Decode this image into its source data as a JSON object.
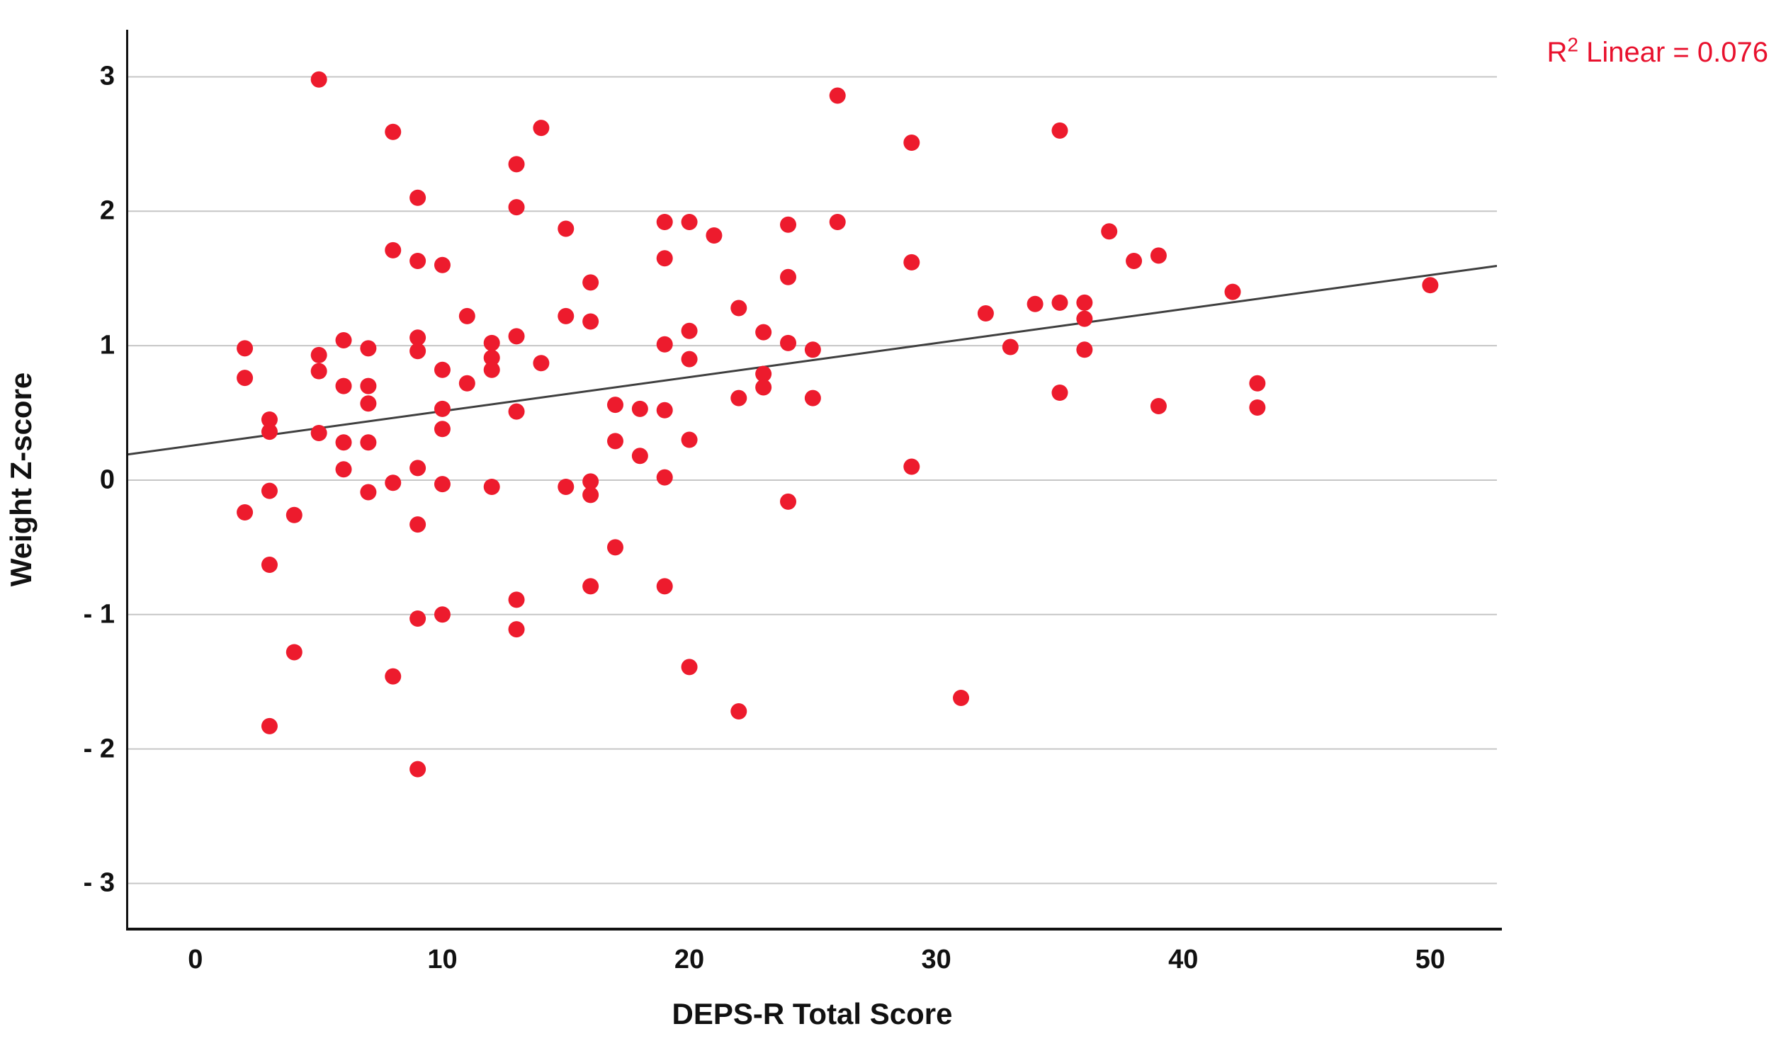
{
  "figure": {
    "background": "#ffffff",
    "annotation": {
      "r_symbol": "R",
      "exponent": "2",
      "text": " Linear = 0.076",
      "color": "#e8112d"
    }
  },
  "chart_data": {
    "type": "scatter",
    "title": "",
    "xlabel": "DEPS-R Total Score",
    "ylabel": "Weight Z-score",
    "xlim": [
      -2.75,
      52.7
    ],
    "ylim": [
      -3.34,
      3.35
    ],
    "xticks": [
      0,
      10,
      20,
      30,
      40,
      50
    ],
    "yticks": [
      {
        "value": 3,
        "label": "3"
      },
      {
        "value": 2,
        "label": "2"
      },
      {
        "value": 1,
        "label": "1"
      },
      {
        "value": 0,
        "label": "0"
      },
      {
        "value": -1,
        "label": "- 1"
      },
      {
        "value": -2,
        "label": "- 2"
      },
      {
        "value": -3,
        "label": "- 3"
      }
    ],
    "grid": "horizontal",
    "gridline_color": "#c6c6c6",
    "axis_color": "#111111",
    "marker_color": "#ed1b2d",
    "marker_diameter_px": 23,
    "trendline": {
      "slope": 0.0253,
      "intercept": 0.26,
      "color": "#3f3f3f",
      "r2": 0.076,
      "r2_label": "R² Linear = 0.076"
    },
    "legend": null,
    "points": [
      [
        5,
        2.98
      ],
      [
        8,
        2.59
      ],
      [
        9,
        2.1
      ],
      [
        10,
        1.6
      ],
      [
        8,
        1.71
      ],
      [
        9,
        1.63
      ],
      [
        13,
        2.35
      ],
      [
        13,
        2.03
      ],
      [
        14,
        2.62
      ],
      [
        15,
        1.87
      ],
      [
        16,
        1.47
      ],
      [
        15,
        1.22
      ],
      [
        16,
        1.18
      ],
      [
        11,
        1.22
      ],
      [
        19,
        1.92
      ],
      [
        20,
        1.92
      ],
      [
        21,
        1.82
      ],
      [
        19,
        1.65
      ],
      [
        22,
        1.28
      ],
      [
        24,
        1.9
      ],
      [
        24,
        1.51
      ],
      [
        26,
        2.86
      ],
      [
        29,
        2.51
      ],
      [
        35,
        2.6
      ],
      [
        26,
        1.92
      ],
      [
        29,
        1.62
      ],
      [
        32,
        1.24
      ],
      [
        34,
        1.31
      ],
      [
        35,
        1.32
      ],
      [
        36,
        1.32
      ],
      [
        36,
        1.2
      ],
      [
        37,
        1.85
      ],
      [
        38,
        1.63
      ],
      [
        39,
        1.67
      ],
      [
        42,
        1.4
      ],
      [
        50,
        1.45
      ],
      [
        2,
        0.98
      ],
      [
        2,
        0.76
      ],
      [
        5,
        0.93
      ],
      [
        5,
        0.81
      ],
      [
        6,
        1.04
      ],
      [
        7,
        0.98
      ],
      [
        6,
        0.7
      ],
      [
        7,
        0.7
      ],
      [
        7,
        0.57
      ],
      [
        9,
        1.06
      ],
      [
        9,
        0.96
      ],
      [
        10,
        0.82
      ],
      [
        11,
        0.72
      ],
      [
        12,
        1.02
      ],
      [
        12,
        0.91
      ],
      [
        12,
        0.82
      ],
      [
        13,
        1.07
      ],
      [
        13,
        0.51
      ],
      [
        14,
        0.87
      ],
      [
        17,
        0.56
      ],
      [
        18,
        0.53
      ],
      [
        19,
        0.52
      ],
      [
        19,
        1.01
      ],
      [
        20,
        1.11
      ],
      [
        20,
        0.9
      ],
      [
        22,
        0.61
      ],
      [
        23,
        1.1
      ],
      [
        23,
        0.79
      ],
      [
        23,
        0.69
      ],
      [
        24,
        1.02
      ],
      [
        25,
        0.97
      ],
      [
        25,
        0.61
      ],
      [
        29,
        0.1
      ],
      [
        33,
        0.99
      ],
      [
        36,
        0.97
      ],
      [
        35,
        0.65
      ],
      [
        39,
        0.55
      ],
      [
        43,
        0.72
      ],
      [
        43,
        0.54
      ],
      [
        3,
        0.45
      ],
      [
        3,
        0.36
      ],
      [
        5,
        0.35
      ],
      [
        6,
        0.28
      ],
      [
        7,
        0.28
      ],
      [
        6,
        0.08
      ],
      [
        9,
        0.09
      ],
      [
        10,
        0.53
      ],
      [
        10,
        0.38
      ],
      [
        17,
        0.29
      ],
      [
        18,
        0.18
      ],
      [
        20,
        0.3
      ],
      [
        19,
        0.02
      ],
      [
        16,
        -0.01
      ],
      [
        16,
        -0.11
      ],
      [
        12,
        -0.05
      ],
      [
        15,
        -0.05
      ],
      [
        8,
        -0.02
      ],
      [
        10,
        -0.03
      ],
      [
        7,
        -0.09
      ],
      [
        3,
        -0.08
      ],
      [
        2,
        -0.24
      ],
      [
        4,
        -0.26
      ],
      [
        9,
        -0.33
      ],
      [
        24,
        -0.16
      ],
      [
        3,
        -0.63
      ],
      [
        17,
        -0.5
      ],
      [
        16,
        -0.79
      ],
      [
        19,
        -0.79
      ],
      [
        13,
        -0.89
      ],
      [
        9,
        -1.03
      ],
      [
        10,
        -1.0
      ],
      [
        13,
        -1.11
      ],
      [
        4,
        -1.28
      ],
      [
        8,
        -1.46
      ],
      [
        3,
        -1.83
      ],
      [
        9,
        -2.15
      ],
      [
        20,
        -1.39
      ],
      [
        22,
        -1.72
      ],
      [
        31,
        -1.62
      ]
    ]
  }
}
